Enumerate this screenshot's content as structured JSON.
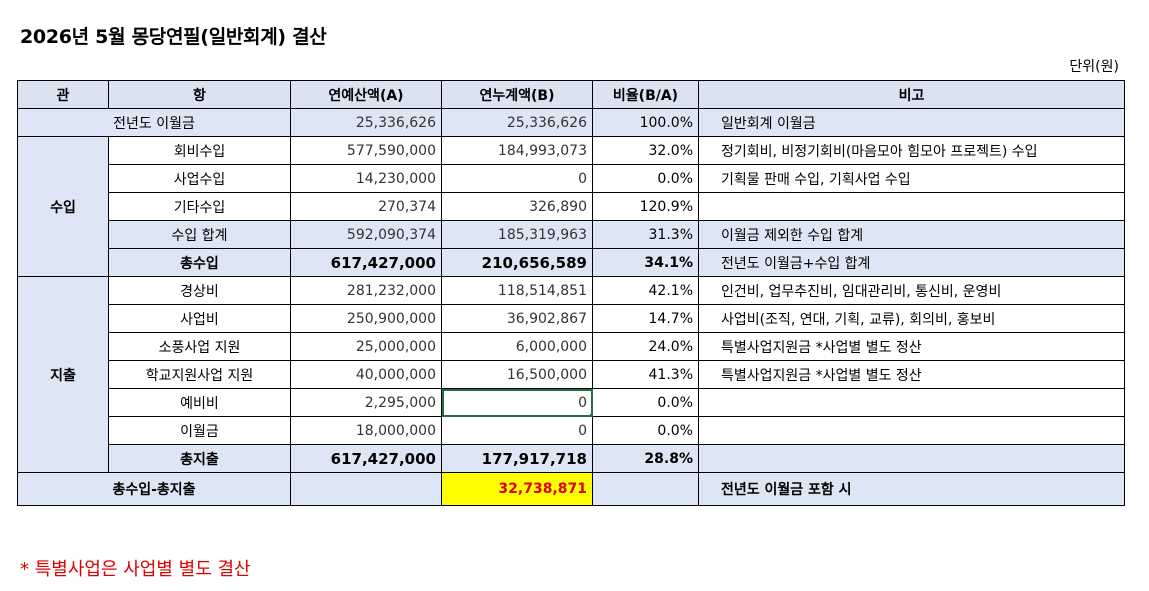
{
  "title": "2026년 5월 몽당연필(일반회계) 결산",
  "unit_label": "단위(원)",
  "headers": {
    "gwan": "관",
    "hang": "항",
    "budget": "연예산액(A)",
    "actual": "연누계액(B)",
    "ratio": "비율(B/A)",
    "note": "비고"
  },
  "carryover": {
    "label": "전년도 이월금",
    "budget": "25,336,626",
    "actual": "25,336,626",
    "ratio": "100.0%",
    "note": "일반회계 이월금"
  },
  "income": {
    "group": "수입",
    "rows": [
      {
        "label": "회비수입",
        "budget": "577,590,000",
        "actual": "184,993,073",
        "ratio": "32.0%",
        "note": "정기회비, 비정기회비(마음모아 힘모아 프로젝트) 수입"
      },
      {
        "label": "사업수입",
        "budget": "14,230,000",
        "actual": "0",
        "ratio": "0.0%",
        "note": "기획물 판매 수입, 기획사업 수입"
      },
      {
        "label": "기타수입",
        "budget": "270,374",
        "actual": "326,890",
        "ratio": "120.9%",
        "note": ""
      },
      {
        "label": "수입 합계",
        "budget": "592,090,374",
        "actual": "185,319,963",
        "ratio": "31.3%",
        "note": "이월금 제외한 수입 합계"
      },
      {
        "label": "총수입",
        "budget": "617,427,000",
        "actual": "210,656,589",
        "ratio": "34.1%",
        "note": "전년도 이월금+수입 합계"
      }
    ]
  },
  "expense": {
    "group": "지출",
    "rows": [
      {
        "label": "경상비",
        "budget": "281,232,000",
        "actual": "118,514,851",
        "ratio": "42.1%",
        "note": "인건비, 업무추진비, 임대관리비, 통신비, 운영비"
      },
      {
        "label": "사업비",
        "budget": "250,900,000",
        "actual": "36,902,867",
        "ratio": "14.7%",
        "note": "사업비(조직, 연대, 기획, 교류), 회의비, 홍보비"
      },
      {
        "label": "소풍사업 지원",
        "budget": "25,000,000",
        "actual": "6,000,000",
        "ratio": "24.0%",
        "note": "특별사업지원금 *사업별 별도 정산"
      },
      {
        "label": "학교지원사업 지원",
        "budget": "40,000,000",
        "actual": "16,500,000",
        "ratio": "41.3%",
        "note": "특별사업지원금 *사업별 별도 정산"
      },
      {
        "label": "예비비",
        "budget": "2,295,000",
        "actual": "0",
        "ratio": "0.0%",
        "note": ""
      },
      {
        "label": "이월금",
        "budget": "18,000,000",
        "actual": "0",
        "ratio": "0.0%",
        "note": ""
      },
      {
        "label": "총지출",
        "budget": "617,427,000",
        "actual": "177,917,718",
        "ratio": "28.8%",
        "note": ""
      }
    ]
  },
  "balance": {
    "label": "총수입-총지출",
    "actual": "32,738,871",
    "note": "전년도 이월금 포함 시"
  },
  "footnote": "* 특별사업은 사업별 별도 결산",
  "colors": {
    "header_bg": "#d9e3f2",
    "highlight_bg": "#ffff00",
    "highlight_text": "#e00000",
    "selection_border": "#1e7145"
  }
}
